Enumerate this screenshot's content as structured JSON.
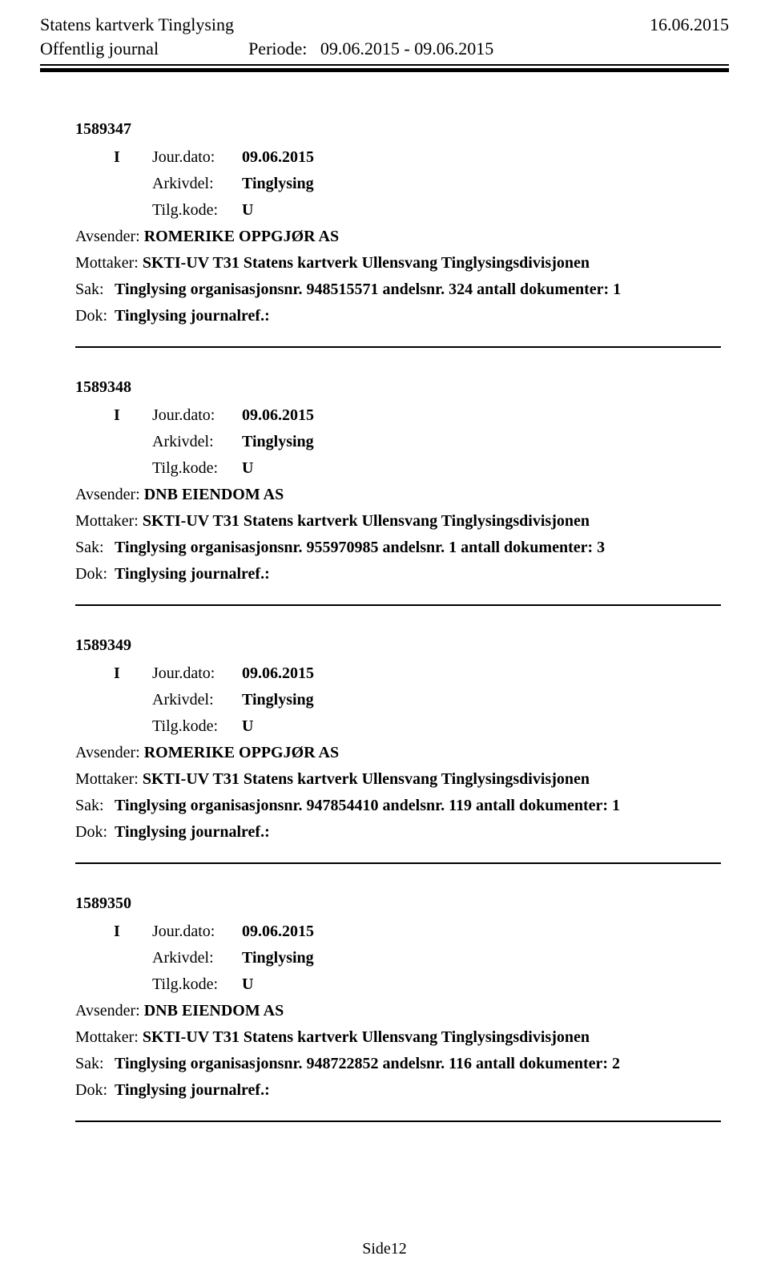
{
  "header": {
    "org": "Statens kartverk Tinglysing",
    "date": "16.06.2015",
    "journal": "Offentlig journal",
    "period_label": "Periode:",
    "period_value": "09.06.2015 - 09.06.2015"
  },
  "labels": {
    "jour_dato": "Jour.dato:",
    "arkivdel": "Arkivdel:",
    "tilg_kode": "Tilg.kode:",
    "avsender": "Avsender:",
    "mottaker": "Mottaker:",
    "sak": "Sak:",
    "dok": "Dok:"
  },
  "footer": {
    "page": "Side12"
  },
  "entries": [
    {
      "id": "1589347",
      "direction": "I",
      "jour_dato": "09.06.2015",
      "arkivdel": "Tinglysing",
      "tilg_kode": "U",
      "avsender": "ROMERIKE OPPGJØR AS",
      "mottaker": "SKTI-UV T31 Statens kartverk Ullensvang Tinglysingsdivisjonen",
      "sak": "Tinglysing organisasjonsnr. 948515571 andelsnr. 324 antall dokumenter: 1",
      "dok": "Tinglysing journalref.:"
    },
    {
      "id": "1589348",
      "direction": "I",
      "jour_dato": "09.06.2015",
      "arkivdel": "Tinglysing",
      "tilg_kode": "U",
      "avsender": "DNB EIENDOM AS",
      "mottaker": "SKTI-UV T31 Statens kartverk Ullensvang Tinglysingsdivisjonen",
      "sak": "Tinglysing organisasjonsnr. 955970985 andelsnr. 1 antall dokumenter: 3",
      "dok": "Tinglysing journalref.:"
    },
    {
      "id": "1589349",
      "direction": "I",
      "jour_dato": "09.06.2015",
      "arkivdel": "Tinglysing",
      "tilg_kode": "U",
      "avsender": "ROMERIKE OPPGJØR AS",
      "mottaker": "SKTI-UV T31 Statens kartverk Ullensvang Tinglysingsdivisjonen",
      "sak": "Tinglysing organisasjonsnr. 947854410 andelsnr. 119 antall dokumenter: 1",
      "dok": "Tinglysing journalref.:"
    },
    {
      "id": "1589350",
      "direction": "I",
      "jour_dato": "09.06.2015",
      "arkivdel": "Tinglysing",
      "tilg_kode": "U",
      "avsender": "DNB EIENDOM AS",
      "mottaker": "SKTI-UV T31 Statens kartverk Ullensvang Tinglysingsdivisjonen",
      "sak": "Tinglysing organisasjonsnr. 948722852 andelsnr. 116 antall dokumenter: 2",
      "dok": "Tinglysing journalref.:"
    }
  ]
}
